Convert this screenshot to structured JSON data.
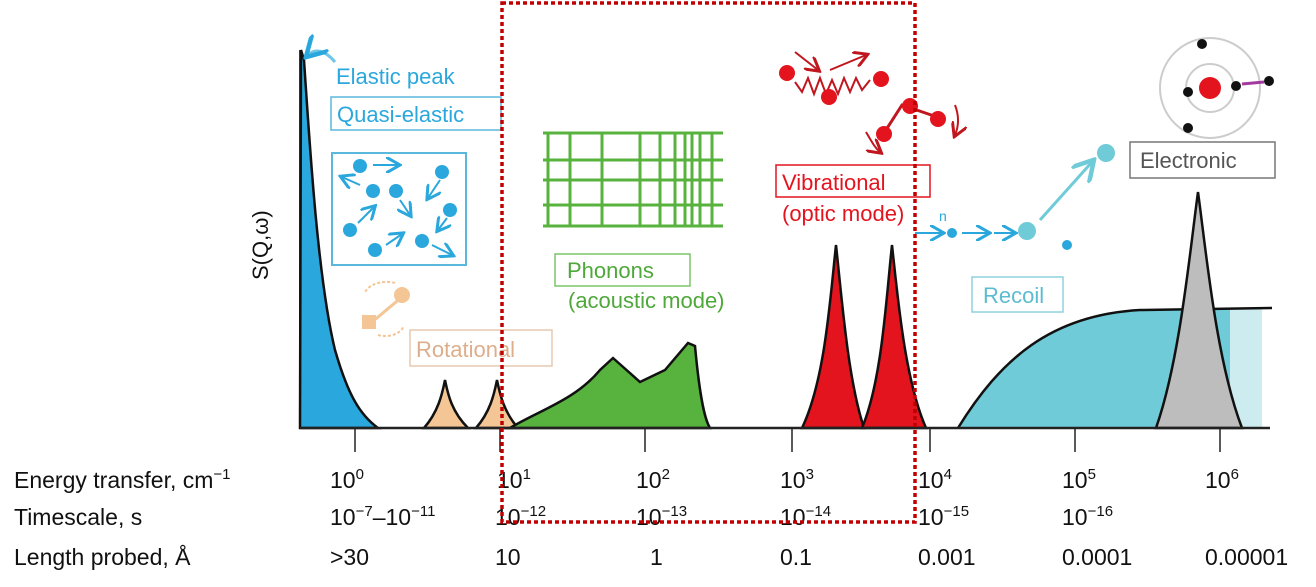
{
  "y_axis_label": "S(Q,ω)",
  "labels": {
    "elastic": "Elastic peak",
    "quasi_elastic": "Quasi-elastic",
    "rotational": "Rotational",
    "phonons": "Phonons",
    "phonons_sub": "(acoustic mode)",
    "vibrational": "Vibrational",
    "vibrational_sub": "(optic mode)",
    "recoil": "Recoil",
    "neutron": "n",
    "electronic": "Electronic"
  },
  "rows": {
    "energy": {
      "title": "Energy transfer, cm",
      "title_exp": "−1",
      "values": [
        {
          "base": "10",
          "exp": "0"
        },
        {
          "base": "10",
          "exp": "1"
        },
        {
          "base": "10",
          "exp": "2"
        },
        {
          "base": "10",
          "exp": "3"
        },
        {
          "base": "10",
          "exp": "4"
        },
        {
          "base": "10",
          "exp": "5"
        },
        {
          "base": "10",
          "exp": "6"
        }
      ]
    },
    "timescale": {
      "title": "Timescale, s",
      "first": {
        "base": "10",
        "exp": "−7",
        "base2": "–10",
        "exp2": "−11"
      },
      "values": [
        {
          "base": "10",
          "exp": "−12"
        },
        {
          "base": "10",
          "exp": "−13"
        },
        {
          "base": "10",
          "exp": "−14"
        },
        {
          "base": "10",
          "exp": "−15"
        },
        {
          "base": "10",
          "exp": "−16"
        }
      ]
    },
    "length": {
      "title": "Length probed, Å",
      "values": [
        ">30",
        "10",
        "1",
        "0.1",
        "0.001",
        "0.0001",
        "0.00001"
      ]
    }
  },
  "colors": {
    "elastic": "#2aa7dc",
    "rotational": "#f4c595",
    "phonons": "#57b33e",
    "vibrational": "#e3141e",
    "recoil": "#6fcbd7",
    "electronic": "#bdbdbd",
    "highlight_box": "#c00000"
  }
}
